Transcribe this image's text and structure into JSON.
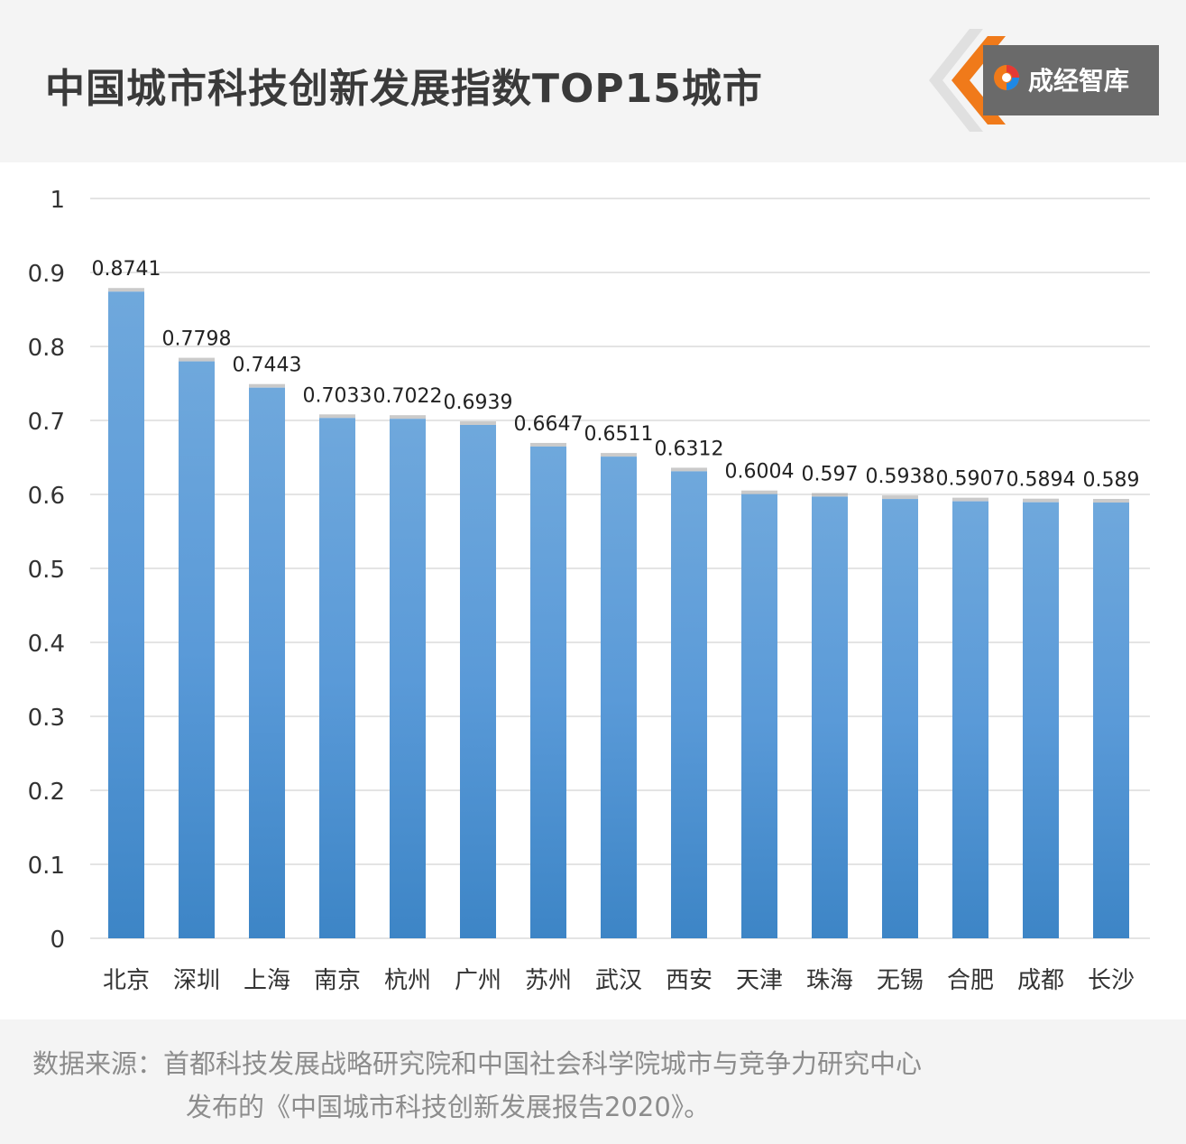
{
  "title": "中国城市科技创新发展指数TOP15城市",
  "logo": {
    "text": "成经智库",
    "accent_color": "#f07a1a",
    "icon": "chengjing-logo-emblem"
  },
  "chart_data": {
    "type": "bar",
    "categories": [
      "北京",
      "深圳",
      "上海",
      "南京",
      "杭州",
      "广州",
      "苏州",
      "武汉",
      "西安",
      "天津",
      "珠海",
      "无锡",
      "合肥",
      "成都",
      "长沙"
    ],
    "values": [
      0.8741,
      0.7798,
      0.7443,
      0.7033,
      0.7022,
      0.6939,
      0.6647,
      0.6511,
      0.6312,
      0.6004,
      0.597,
      0.5938,
      0.5907,
      0.5894,
      0.589
    ],
    "value_labels": [
      "0.8741",
      "0.7798",
      "0.7443",
      "0.7033",
      "0.7022",
      "0.6939",
      "0.6647",
      "0.6511",
      "0.6312",
      "0.6004",
      "0.597",
      "0.5938",
      "0.5907",
      "0.5894",
      "0.589"
    ],
    "y_ticks": [
      "0",
      "0.1",
      "0.2",
      "0.3",
      "0.4",
      "0.5",
      "0.6",
      "0.7",
      "0.8",
      "0.9",
      "1"
    ],
    "ylim": [
      0,
      1
    ],
    "grid": true,
    "bar_color_top": "#6fa8dc",
    "bar_color_bottom": "#3d85c6"
  },
  "source": {
    "line1": "数据来源：首都科技发展战略研究院和中国社会科学院城市与竞争力研究中心",
    "line2": "发布的《中国城市科技创新发展报告2020》。"
  }
}
